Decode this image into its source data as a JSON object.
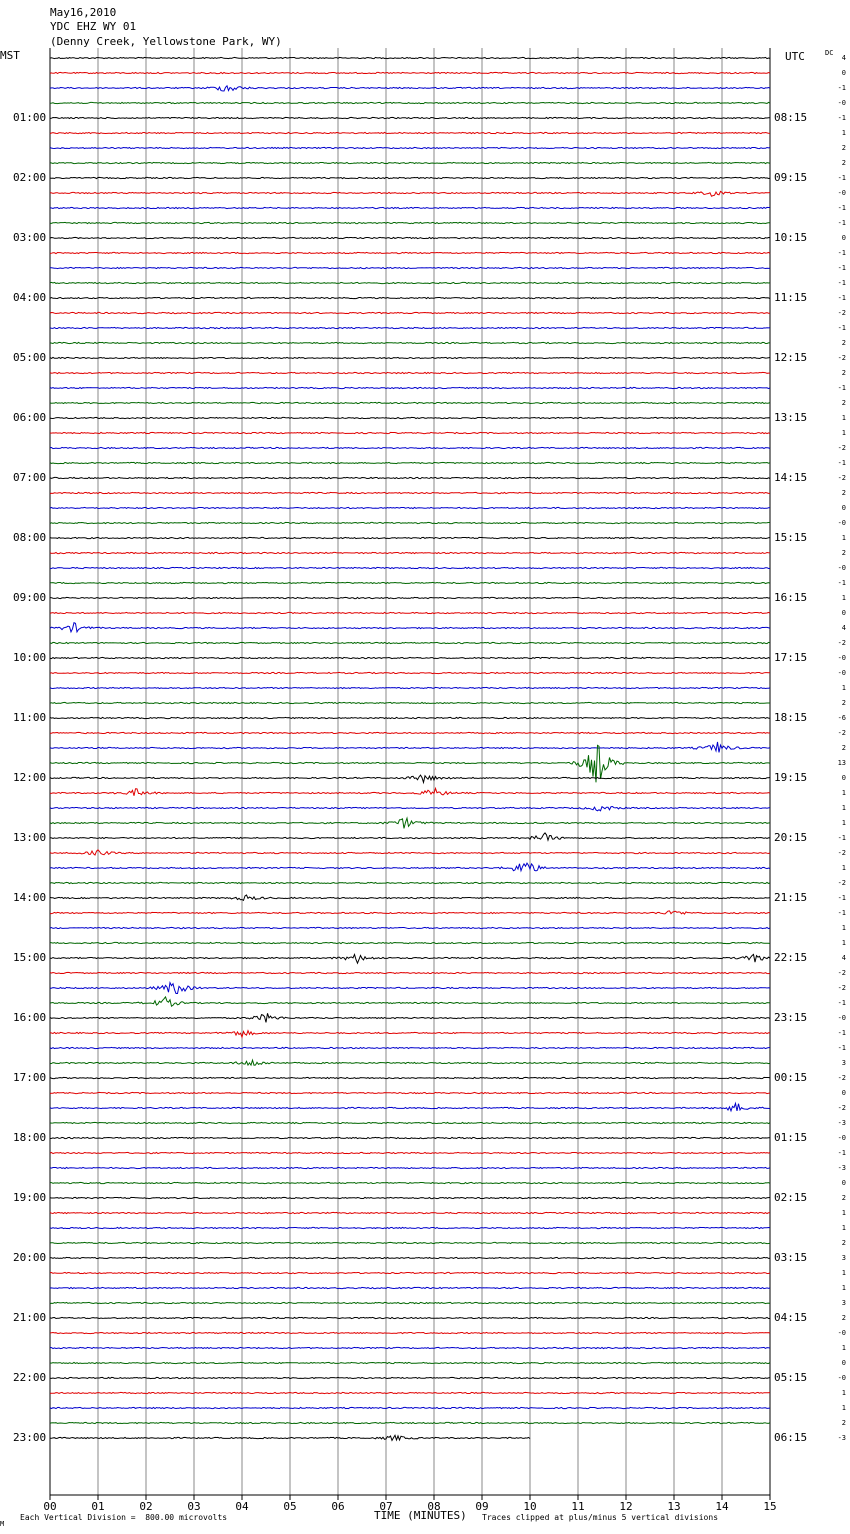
{
  "header": {
    "date": "May16,2010",
    "station": "YDC EHZ WY 01",
    "location": "(Denny Creek, Yellowstone Park, WY)"
  },
  "left_axis_label": "MST",
  "right_axis_label": "UTC",
  "dc_label": "DC",
  "x_axis": {
    "title": "TIME (MINUTES)",
    "ticks": [
      "00",
      "01",
      "02",
      "03",
      "04",
      "05",
      "06",
      "07",
      "08",
      "09",
      "10",
      "11",
      "12",
      "13",
      "14",
      "15"
    ]
  },
  "footer": {
    "scale_note": "Each Vertical Division =  800.00 microvolts",
    "clip_note": "Traces clipped at plus/minus 5 vertical divisions",
    "corner_mark": "M"
  },
  "colors": {
    "cycle": [
      "#000000",
      "#e00000",
      "#0000cc",
      "#006600"
    ],
    "grid": "#888888"
  },
  "chart_data": {
    "type": "line",
    "description_type": "helicorder",
    "minutes_per_line": 15,
    "line_count": 93,
    "last_line_end_minute": 10,
    "trace_color_cycle": [
      "black",
      "red",
      "blue",
      "green"
    ],
    "x_range": [
      0,
      15
    ],
    "mst_labels": [
      "01:00",
      "02:00",
      "03:00",
      "04:00",
      "05:00",
      "06:00",
      "07:00",
      "08:00",
      "09:00",
      "10:00",
      "11:00",
      "12:00",
      "13:00",
      "14:00",
      "15:00",
      "16:00",
      "17:00",
      "18:00",
      "19:00",
      "20:00",
      "21:00",
      "22:00",
      "23:00"
    ],
    "utc_labels": [
      "08:15",
      "09:15",
      "10:15",
      "11:15",
      "12:15",
      "13:15",
      "14:15",
      "15:15",
      "16:15",
      "17:15",
      "18:15",
      "19:15",
      "20:15",
      "21:15",
      "22:15",
      "23:15",
      "00:15",
      "01:15",
      "02:15",
      "03:15",
      "04:15",
      "05:15",
      "06:15"
    ],
    "dc_offsets": [
      "4",
      "0",
      "-1",
      "-0",
      "-1",
      "1",
      "2",
      "2",
      "-1",
      "-0",
      "-1",
      "-1",
      "0",
      "-1",
      "-1",
      "-1",
      "-1",
      "-2",
      "-1",
      "2",
      "-2",
      "2",
      "-1",
      "2",
      "1",
      "1",
      "-2",
      "-1",
      "-2",
      "2",
      "0",
      "-0",
      "1",
      "2",
      "-0",
      "-1",
      "1",
      "0",
      "4",
      "-2",
      "-0",
      "-0",
      "1",
      "2",
      "-6",
      "-2",
      "2",
      "13",
      "0",
      "1",
      "1",
      "1",
      "-1",
      "-2",
      "1",
      "-2",
      "-1",
      "-1",
      "1",
      "1",
      "4",
      "-2",
      "-2",
      "-1",
      "-0",
      "-1",
      "-1",
      "3",
      "-2",
      "0",
      "-2",
      "-3",
      "-0",
      "-1",
      "-3",
      "0",
      "2",
      "1",
      "1",
      "2",
      "3",
      "1",
      "1",
      "3",
      "2",
      "-0",
      "1",
      "0",
      "-0",
      "1",
      "1",
      "2",
      "-3"
    ],
    "events": [
      {
        "line": 2,
        "minute": 3.7,
        "amp": 0.5
      },
      {
        "line": 9,
        "minute": 13.8,
        "amp": 0.3
      },
      {
        "line": 38,
        "minute": 0.5,
        "amp": 0.5
      },
      {
        "line": 46,
        "minute": 13.9,
        "amp": 0.6
      },
      {
        "line": 47,
        "minute": 11.4,
        "amp": 2.4
      },
      {
        "line": 48,
        "minute": 7.8,
        "amp": 0.5
      },
      {
        "line": 49,
        "minute": 8.0,
        "amp": 0.5
      },
      {
        "line": 49,
        "minute": 1.8,
        "amp": 0.4
      },
      {
        "line": 50,
        "minute": 11.5,
        "amp": 0.4
      },
      {
        "line": 51,
        "minute": 7.4,
        "amp": 0.6
      },
      {
        "line": 52,
        "minute": 10.3,
        "amp": 0.5
      },
      {
        "line": 53,
        "minute": 1.0,
        "amp": 0.3
      },
      {
        "line": 54,
        "minute": 9.9,
        "amp": 1.0
      },
      {
        "line": 56,
        "minute": 4.1,
        "amp": 0.3
      },
      {
        "line": 57,
        "minute": 13.0,
        "amp": 0.3
      },
      {
        "line": 60,
        "minute": 6.4,
        "amp": 0.5
      },
      {
        "line": 60,
        "minute": 14.7,
        "amp": 0.4
      },
      {
        "line": 62,
        "minute": 2.6,
        "amp": 0.9
      },
      {
        "line": 63,
        "minute": 2.4,
        "amp": 0.6
      },
      {
        "line": 64,
        "minute": 4.5,
        "amp": 0.5
      },
      {
        "line": 65,
        "minute": 4.0,
        "amp": 0.4
      },
      {
        "line": 67,
        "minute": 4.2,
        "amp": 0.4
      },
      {
        "line": 70,
        "minute": 14.3,
        "amp": 0.5
      },
      {
        "line": 92,
        "minute": 7.2,
        "amp": 0.3
      }
    ]
  }
}
